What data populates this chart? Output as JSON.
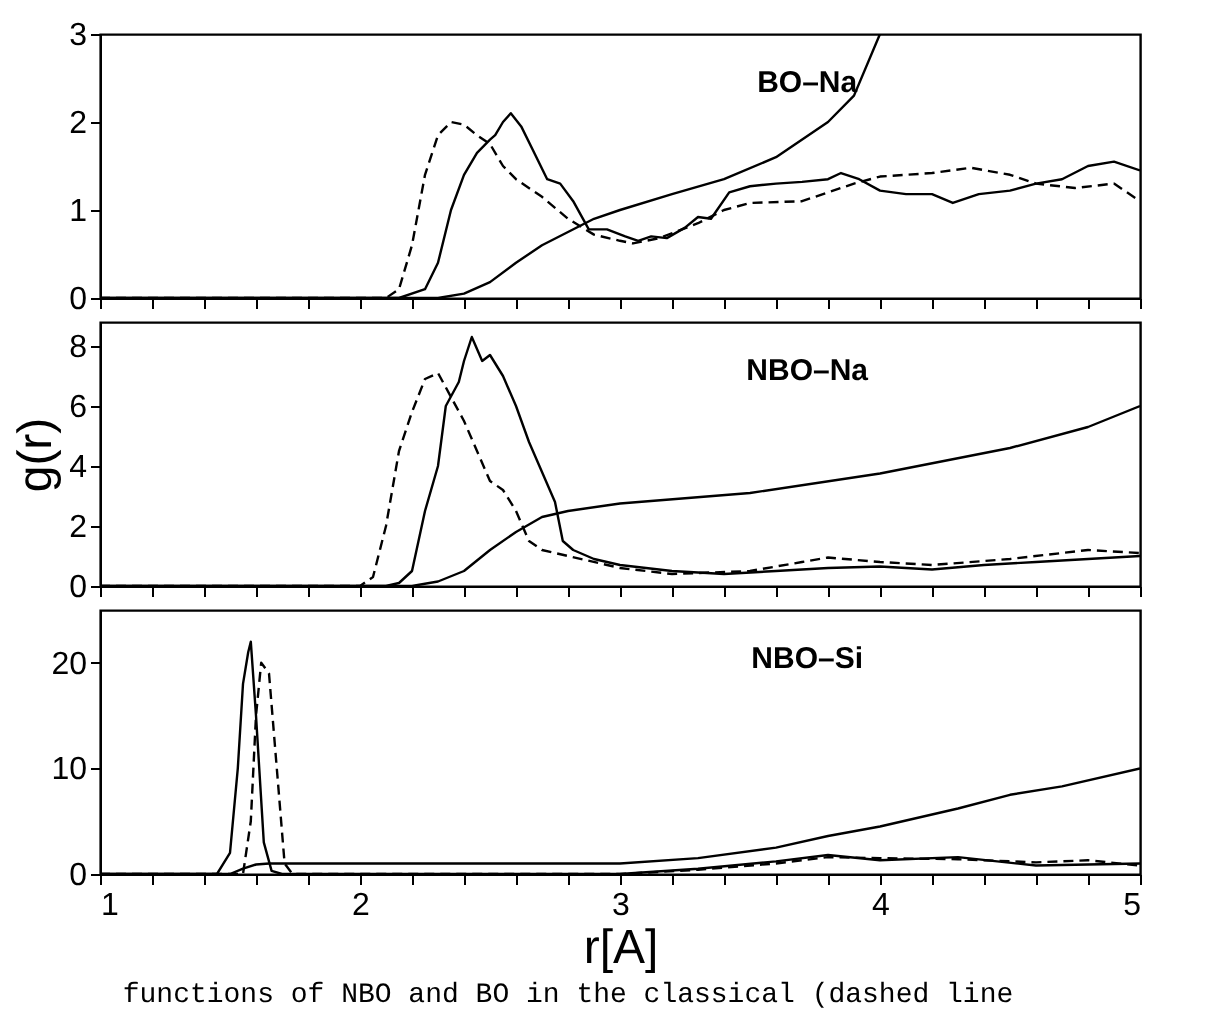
{
  "chart_data": [
    {
      "type": "line",
      "xlim": [
        1,
        5
      ],
      "ylim": [
        0,
        3
      ],
      "yticks": [
        0,
        1,
        2,
        3
      ],
      "tick_labels": "y",
      "grid": false,
      "annotations": [
        "BO–Na"
      ],
      "xticks": [
        1,
        {
          "value": 1.2,
          "label": null
        },
        {
          "value": 1.4,
          "label": null
        },
        {
          "value": 1.6,
          "label": null
        },
        {
          "value": 1.8,
          "label": null
        },
        2,
        {
          "value": 2.2,
          "label": null
        },
        {
          "value": 2.4,
          "label": null
        },
        {
          "value": 2.6,
          "label": null
        },
        {
          "value": 2.8,
          "label": null
        },
        3,
        {
          "value": 3.2,
          "label": null
        },
        {
          "value": 3.4,
          "label": null
        },
        {
          "value": 3.6,
          "label": null
        },
        {
          "value": 3.8,
          "label": null
        },
        4,
        {
          "value": 4.2,
          "label": null
        },
        {
          "value": 4.4,
          "label": null
        },
        {
          "value": 4.6,
          "label": null
        },
        {
          "value": 4.8,
          "label": null
        },
        5
      ],
      "series": [
        {
          "color": "#000000",
          "line_style": "solid",
          "x": [
            1.0,
            2.15,
            2.25,
            2.3,
            2.35,
            2.4,
            2.45,
            2.5,
            2.52,
            2.55,
            2.58,
            2.62,
            2.67,
            2.72,
            2.77,
            2.82,
            2.88,
            2.95,
            3.02,
            3.07,
            3.12,
            3.18,
            3.25,
            3.3,
            3.35,
            3.42,
            3.5,
            3.6,
            3.7,
            3.8,
            3.85,
            3.92,
            4.0,
            4.1,
            4.2,
            4.28,
            4.38,
            4.5,
            4.6,
            4.7,
            4.8,
            4.9,
            5.0
          ],
          "values": [
            0,
            0,
            0.1,
            0.4,
            1.0,
            1.4,
            1.65,
            1.8,
            1.85,
            2.0,
            2.1,
            1.95,
            1.65,
            1.35,
            1.3,
            1.1,
            0.78,
            0.78,
            0.7,
            0.65,
            0.7,
            0.68,
            0.8,
            0.92,
            0.9,
            1.2,
            1.27,
            1.3,
            1.32,
            1.35,
            1.42,
            1.35,
            1.22,
            1.18,
            1.18,
            1.08,
            1.18,
            1.22,
            1.3,
            1.35,
            1.5,
            1.55,
            1.45
          ]
        },
        {
          "color": "#000000",
          "line_style": "dashed",
          "x": [
            1.0,
            2.1,
            2.15,
            2.2,
            2.25,
            2.3,
            2.35,
            2.4,
            2.45,
            2.5,
            2.55,
            2.6,
            2.7,
            2.8,
            2.9,
            3.0,
            3.05,
            3.15,
            3.3,
            3.4,
            3.5,
            3.7,
            3.9,
            4.0,
            4.2,
            4.35,
            4.5,
            4.6,
            4.75,
            4.9,
            5.0
          ],
          "values": [
            0,
            0,
            0.1,
            0.6,
            1.4,
            1.85,
            2.0,
            1.97,
            1.85,
            1.75,
            1.5,
            1.35,
            1.15,
            0.9,
            0.72,
            0.65,
            0.62,
            0.68,
            0.85,
            1.0,
            1.08,
            1.1,
            1.3,
            1.38,
            1.42,
            1.48,
            1.4,
            1.3,
            1.25,
            1.3,
            1.1
          ]
        },
        {
          "color": "#000000",
          "line_style": "solid",
          "x": [
            1.0,
            2.3,
            2.4,
            2.5,
            2.6,
            2.7,
            2.8,
            2.9,
            3.0,
            3.2,
            3.4,
            3.6,
            3.8,
            3.9,
            4.0
          ],
          "values": [
            0,
            0,
            0.05,
            0.18,
            0.4,
            0.6,
            0.75,
            0.9,
            1.0,
            1.18,
            1.35,
            1.6,
            2.0,
            2.3,
            3.0
          ]
        }
      ]
    },
    {
      "type": "line",
      "xlim": [
        1,
        5
      ],
      "ylim": [
        0,
        8.8
      ],
      "yticks": [
        0,
        2,
        4,
        6,
        8
      ],
      "tick_labels": "y",
      "grid": false,
      "ylabel": "g(r)",
      "annotations": [
        "NBO–Na"
      ],
      "xticks": [
        1,
        {
          "value": 1.2,
          "label": null
        },
        {
          "value": 1.4,
          "label": null
        },
        {
          "value": 1.6,
          "label": null
        },
        {
          "value": 1.8,
          "label": null
        },
        2,
        {
          "value": 2.2,
          "label": null
        },
        {
          "value": 2.4,
          "label": null
        },
        {
          "value": 2.6,
          "label": null
        },
        {
          "value": 2.8,
          "label": null
        },
        3,
        {
          "value": 3.2,
          "label": null
        },
        {
          "value": 3.4,
          "label": null
        },
        {
          "value": 3.6,
          "label": null
        },
        {
          "value": 3.8,
          "label": null
        },
        4,
        {
          "value": 4.2,
          "label": null
        },
        {
          "value": 4.4,
          "label": null
        },
        {
          "value": 4.6,
          "label": null
        },
        {
          "value": 4.8,
          "label": null
        },
        5
      ],
      "series": [
        {
          "color": "#000000",
          "line_style": "solid",
          "x": [
            1.0,
            2.1,
            2.15,
            2.2,
            2.25,
            2.3,
            2.33,
            2.38,
            2.4,
            2.43,
            2.47,
            2.5,
            2.55,
            2.6,
            2.65,
            2.7,
            2.75,
            2.78,
            2.82,
            2.9,
            3.0,
            3.2,
            3.4,
            3.6,
            3.8,
            4.0,
            4.2,
            4.4,
            4.6,
            4.8,
            5.0
          ],
          "values": [
            0,
            0,
            0.1,
            0.5,
            2.5,
            4,
            6,
            6.8,
            7.5,
            8.3,
            7.5,
            7.7,
            7.0,
            6.0,
            4.8,
            3.8,
            2.8,
            1.5,
            1.2,
            0.9,
            0.7,
            0.5,
            0.4,
            0.5,
            0.6,
            0.65,
            0.55,
            0.7,
            0.8,
            0.9,
            1.0
          ]
        },
        {
          "color": "#000000",
          "line_style": "dashed",
          "x": [
            1.0,
            2.0,
            2.05,
            2.1,
            2.15,
            2.2,
            2.25,
            2.3,
            2.35,
            2.4,
            2.45,
            2.5,
            2.55,
            2.6,
            2.65,
            2.7,
            2.8,
            3.0,
            3.2,
            3.5,
            3.7,
            3.8,
            4.0,
            4.2,
            4.5,
            4.8,
            5.0
          ],
          "values": [
            0,
            0,
            0.3,
            2.0,
            4.5,
            5.8,
            6.9,
            7.1,
            6.3,
            5.5,
            4.5,
            3.5,
            3.2,
            2.5,
            1.5,
            1.2,
            1.0,
            0.6,
            0.4,
            0.5,
            0.8,
            0.95,
            0.8,
            0.7,
            0.9,
            1.2,
            1.1
          ]
        },
        {
          "color": "#000000",
          "line_style": "solid",
          "x": [
            1.0,
            2.2,
            2.3,
            2.4,
            2.5,
            2.6,
            2.7,
            2.8,
            3.0,
            3.5,
            4.0,
            4.5,
            4.8,
            5.0
          ],
          "values": [
            0,
            0,
            0.15,
            0.5,
            1.2,
            1.8,
            2.3,
            2.5,
            2.75,
            3.1,
            3.75,
            4.6,
            5.3,
            6.0
          ]
        }
      ]
    },
    {
      "type": "line",
      "xlim": [
        1,
        5
      ],
      "ylim": [
        0,
        25
      ],
      "yticks": [
        0,
        10,
        20
      ],
      "grid": false,
      "xlabel": "r[A]",
      "annotations": [
        "NBO–Si",
        "functions of NBO and BO in the classical (dashed line"
      ],
      "xticks": [
        1,
        {
          "value": 1.2,
          "label": null
        },
        {
          "value": 1.4,
          "label": null
        },
        {
          "value": 1.6,
          "label": null
        },
        {
          "value": 1.8,
          "label": null
        },
        2,
        {
          "value": 2.2,
          "label": null
        },
        {
          "value": 2.4,
          "label": null
        },
        {
          "value": 2.6,
          "label": null
        },
        {
          "value": 2.8,
          "label": null
        },
        3,
        {
          "value": 3.2,
          "label": null
        },
        {
          "value": 3.4,
          "label": null
        },
        {
          "value": 3.6,
          "label": null
        },
        {
          "value": 3.8,
          "label": null
        },
        4,
        {
          "value": 4.2,
          "label": null
        },
        {
          "value": 4.4,
          "label": null
        },
        {
          "value": 4.6,
          "label": null
        },
        {
          "value": 4.8,
          "label": null
        },
        5
      ],
      "series": [
        {
          "color": "#000000",
          "line_style": "solid",
          "x": [
            1.0,
            1.45,
            1.5,
            1.53,
            1.55,
            1.57,
            1.58,
            1.6,
            1.63,
            1.66,
            1.7,
            3.0,
            3.3,
            3.6,
            3.8,
            4.0,
            4.3,
            4.6,
            5.0
          ],
          "values": [
            0,
            0,
            2,
            10,
            18,
            21,
            22,
            15,
            3,
            0.3,
            0,
            0,
            0.5,
            1.2,
            1.8,
            1.3,
            1.6,
            0.8,
            1.0
          ]
        },
        {
          "color": "#000000",
          "line_style": "dashed",
          "x": [
            1.0,
            1.55,
            1.58,
            1.6,
            1.62,
            1.65,
            1.68,
            1.71,
            1.74,
            3.0,
            3.3,
            3.6,
            3.8,
            4.0,
            4.3,
            4.6,
            4.8,
            5.0
          ],
          "values": [
            0,
            0,
            5,
            15,
            20,
            19,
            10,
            1,
            0,
            0,
            0.4,
            1.0,
            1.6,
            1.5,
            1.4,
            1.1,
            1.3,
            0.8
          ]
        },
        {
          "color": "#000000",
          "line_style": "solid",
          "x": [
            1.0,
            1.5,
            1.55,
            1.6,
            1.65,
            3.0,
            3.3,
            3.6,
            3.8,
            4.0,
            4.3,
            4.5,
            4.7,
            5.0
          ],
          "values": [
            0,
            0,
            0.5,
            0.9,
            1.0,
            1.0,
            1.5,
            2.5,
            3.6,
            4.5,
            6.2,
            7.5,
            8.3,
            10.0
          ]
        }
      ]
    }
  ]
}
